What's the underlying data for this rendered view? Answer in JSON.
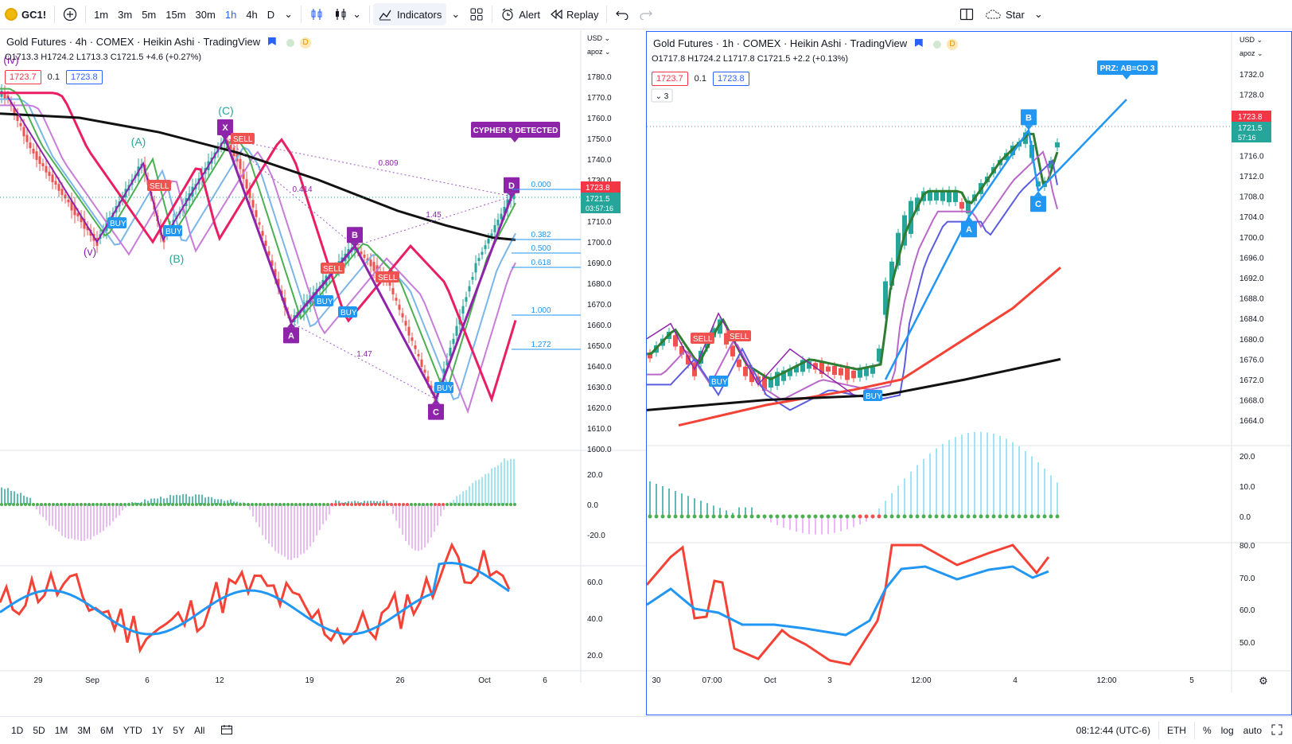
{
  "toolbar": {
    "symbol": "GC1!",
    "timeframes": [
      "1m",
      "3m",
      "5m",
      "15m",
      "30m",
      "1h",
      "4h",
      "D"
    ],
    "active_timeframe": "1h",
    "indicators_label": "Indicators",
    "alert_label": "Alert",
    "replay_label": "Replay",
    "star_label": "Star"
  },
  "left": {
    "title": "Gold Futures · 4h · COMEX · Heikin Ashi · TradingView",
    "ohlc": "O1713.3 H1724.2 L1713.3 C1721.5 +4.6 (+0.27%)",
    "bid": "1723.7",
    "spread": "0.1",
    "ask": "1723.8",
    "currency": "USD",
    "scale_mode": "apoz",
    "price_ticks": [
      "1780.0",
      "1770.0",
      "1760.0",
      "1750.0",
      "1740.0",
      "1730.0",
      "1720.0",
      "1710.0",
      "1700.0",
      "1690.0",
      "1680.0",
      "1670.0",
      "1660.0",
      "1650.0",
      "1640.0",
      "1630.0",
      "1620.0",
      "1610.0",
      "1600.0"
    ],
    "last_price": "1723.8",
    "close_price": "1721.5",
    "countdown": "03:57:16",
    "macd_ticks": [
      "20.0",
      "0.0",
      "-20.0"
    ],
    "rsi_ticks": [
      "60.0",
      "40.0",
      "20.0"
    ],
    "time_ticks": [
      "29",
      "Sep",
      "6",
      "12",
      "19",
      "26",
      "Oct",
      "6"
    ],
    "cypher_label": "CYPHER 9 DETECTED",
    "fib_levels": [
      "0.000",
      "0.382",
      "0.500",
      "0.618",
      "1.000",
      "1.272"
    ],
    "ratios": [
      "0.809",
      "0.414",
      "1.45",
      "1.47"
    ],
    "pattern_points": [
      "X",
      "A",
      "B",
      "C",
      "D"
    ],
    "wave_labels": [
      "(C)",
      "(A)",
      "(B)",
      "(v)",
      "(iv)"
    ],
    "signals": {
      "buy": "BUY",
      "sell": "SELL"
    }
  },
  "right": {
    "title": "Gold Futures · 1h · COMEX · Heikin Ashi · TradingView",
    "ohlc": "O1717.8 H1724.2 L1717.8 C1721.5 +2.2 (+0.13%)",
    "bid": "1723.7",
    "spread": "0.1",
    "ask": "1723.8",
    "currency": "USD",
    "scale_mode": "apoz",
    "price_ticks": [
      "1732.0",
      "1728.0",
      "1724.0",
      "1720.0",
      "1716.0",
      "1712.0",
      "1708.0",
      "1704.0",
      "1700.0",
      "1696.0",
      "1692.0",
      "1688.0",
      "1684.0",
      "1680.0",
      "1676.0",
      "1672.0",
      "1668.0",
      "1664.0"
    ],
    "last_price": "1723.8",
    "close_price": "1721.5",
    "countdown": "57:16",
    "macd_ticks": [
      "20.0",
      "10.0",
      "0.0"
    ],
    "rsi_ticks": [
      "80.0",
      "70.0",
      "60.0",
      "50.0"
    ],
    "time_ticks": [
      "30",
      "07:00",
      "Oct",
      "3",
      "12:00",
      "4",
      "12:00",
      "5"
    ],
    "prz_label": "PRZ: AB=CD 3",
    "pattern_points": [
      "A",
      "B",
      "C"
    ],
    "signals": {
      "buy": "BUY",
      "sell": "SELL"
    }
  },
  "bottombar": {
    "ranges": [
      "1D",
      "5D",
      "1M",
      "3M",
      "6M",
      "YTD",
      "1Y",
      "5Y",
      "All"
    ],
    "clock": "08:12:44 (UTC-6)",
    "session": "ETH",
    "percent": "%",
    "log": "log",
    "auto": "auto"
  }
}
